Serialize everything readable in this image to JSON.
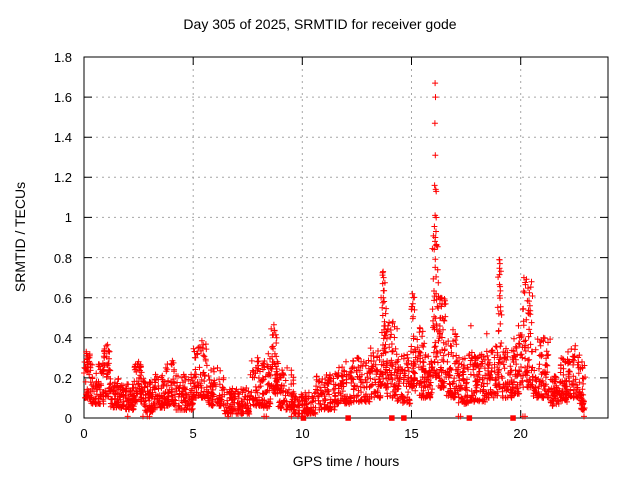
{
  "chart_data": {
    "type": "scatter",
    "title": "Day 305 of 2025, SRMTID for receiver gode",
    "xlabel": "GPS time / hours",
    "ylabel": "SRMTID / TECUs",
    "xlim": [
      0,
      24
    ],
    "ylim": [
      0,
      1.8
    ],
    "xticks": [
      0,
      5,
      10,
      15,
      20
    ],
    "yticks": [
      0,
      0.2,
      0.4,
      0.6,
      0.8,
      1,
      1.2,
      1.4,
      1.6,
      1.8
    ],
    "ytick_labels": [
      "0",
      "0.2",
      "0.4",
      "0.6",
      "0.8",
      "1",
      "1.2",
      "1.4",
      "1.6",
      "1.8"
    ],
    "grid": true,
    "legend": "none",
    "marker": "plus",
    "marker_color": "#ff0000",
    "grid_color": "#a6a6a6",
    "axis_color": "#000000",
    "series_name": "SRMTID",
    "density_bands": [
      [
        0.0,
        0.3,
        0.1,
        0.33,
        45
      ],
      [
        0.3,
        0.9,
        0.07,
        0.28,
        70
      ],
      [
        0.9,
        1.2,
        0.1,
        0.36,
        40
      ],
      [
        1.2,
        1.8,
        0.05,
        0.2,
        70
      ],
      [
        1.8,
        2.3,
        0.04,
        0.17,
        60
      ],
      [
        2.3,
        2.75,
        0.08,
        0.28,
        55
      ],
      [
        2.75,
        3.2,
        0.03,
        0.18,
        55
      ],
      [
        3.2,
        3.7,
        0.05,
        0.22,
        55
      ],
      [
        3.7,
        4.2,
        0.06,
        0.28,
        55
      ],
      [
        4.2,
        5.0,
        0.04,
        0.22,
        80
      ],
      [
        5.0,
        5.65,
        0.1,
        0.38,
        70
      ],
      [
        5.65,
        6.4,
        0.06,
        0.25,
        70
      ],
      [
        6.4,
        7.6,
        0.02,
        0.15,
        110
      ],
      [
        7.6,
        8.2,
        0.06,
        0.3,
        60
      ],
      [
        8.2,
        8.55,
        0.05,
        0.33,
        45
      ],
      [
        8.55,
        8.9,
        0.12,
        0.46,
        50
      ],
      [
        8.9,
        9.6,
        0.04,
        0.24,
        65
      ],
      [
        9.6,
        10.6,
        0.02,
        0.13,
        90
      ],
      [
        10.6,
        11.5,
        0.04,
        0.22,
        85
      ],
      [
        11.5,
        12.3,
        0.07,
        0.26,
        75
      ],
      [
        12.3,
        13.1,
        0.08,
        0.3,
        75
      ],
      [
        13.1,
        13.6,
        0.1,
        0.35,
        55
      ],
      [
        13.6,
        13.85,
        0.15,
        0.74,
        45
      ],
      [
        13.85,
        14.35,
        0.1,
        0.5,
        60
      ],
      [
        14.35,
        14.95,
        0.07,
        0.32,
        65
      ],
      [
        14.95,
        15.15,
        0.15,
        0.62,
        35
      ],
      [
        15.15,
        15.6,
        0.1,
        0.45,
        50
      ],
      [
        15.6,
        15.95,
        0.1,
        0.32,
        45
      ],
      [
        15.95,
        16.25,
        0.2,
        1.0,
        55
      ],
      [
        16.25,
        16.6,
        0.15,
        0.6,
        55
      ],
      [
        16.6,
        17.1,
        0.1,
        0.42,
        60
      ],
      [
        17.1,
        17.6,
        0.07,
        0.3,
        60
      ],
      [
        17.6,
        18.4,
        0.08,
        0.33,
        85
      ],
      [
        18.4,
        18.95,
        0.1,
        0.38,
        60
      ],
      [
        18.95,
        19.15,
        0.15,
        0.8,
        30
      ],
      [
        19.15,
        19.6,
        0.1,
        0.35,
        50
      ],
      [
        19.6,
        20.05,
        0.12,
        0.45,
        55
      ],
      [
        20.05,
        20.55,
        0.15,
        0.7,
        65
      ],
      [
        20.55,
        21.35,
        0.1,
        0.4,
        80
      ],
      [
        21.35,
        21.75,
        0.06,
        0.22,
        45
      ],
      [
        21.75,
        22.15,
        0.08,
        0.3,
        50
      ],
      [
        22.15,
        22.7,
        0.1,
        0.35,
        60
      ],
      [
        22.7,
        22.95,
        0.04,
        0.28,
        35
      ]
    ],
    "outlier_points": [
      [
        0.1,
        0.33
      ],
      [
        0.15,
        0.31
      ],
      [
        1.08,
        0.365
      ],
      [
        1.12,
        0.335
      ],
      [
        2.5,
        0.28
      ],
      [
        4.05,
        0.285
      ],
      [
        5.35,
        0.35
      ],
      [
        5.4,
        0.385
      ],
      [
        5.46,
        0.365
      ],
      [
        7.95,
        0.3
      ],
      [
        8.67,
        0.415
      ],
      [
        8.7,
        0.465
      ],
      [
        8.73,
        0.435
      ],
      [
        9.3,
        0.25
      ],
      [
        12.0,
        0.28
      ],
      [
        12.55,
        0.3
      ],
      [
        13.66,
        0.55
      ],
      [
        13.68,
        0.67
      ],
      [
        13.69,
        0.575
      ],
      [
        13.7,
        0.73
      ],
      [
        13.71,
        0.6
      ],
      [
        13.72,
        0.7
      ],
      [
        13.74,
        0.635
      ],
      [
        14.15,
        0.48
      ],
      [
        14.22,
        0.455
      ],
      [
        15.03,
        0.555
      ],
      [
        15.04,
        0.62
      ],
      [
        15.06,
        0.57
      ],
      [
        15.38,
        0.45
      ],
      [
        16.04,
        0.84
      ],
      [
        16.05,
        0.955
      ],
      [
        16.06,
        1.16
      ],
      [
        16.07,
        1.47
      ],
      [
        16.08,
        1.67
      ],
      [
        16.08,
        1.01
      ],
      [
        16.09,
        1.31
      ],
      [
        16.09,
        0.9
      ],
      [
        16.1,
        1.6
      ],
      [
        16.11,
        1.14
      ],
      [
        16.12,
        0.93
      ],
      [
        16.13,
        1.13
      ],
      [
        16.14,
        0.865
      ],
      [
        16.3,
        0.57
      ],
      [
        16.35,
        0.6
      ],
      [
        16.9,
        0.44
      ],
      [
        17.0,
        0.42
      ],
      [
        17.72,
        0.46
      ],
      [
        18.45,
        0.42
      ],
      [
        19.0,
        0.52
      ],
      [
        19.02,
        0.79
      ],
      [
        19.03,
        0.715
      ],
      [
        19.04,
        0.61
      ],
      [
        19.05,
        0.77
      ],
      [
        19.06,
        0.655
      ],
      [
        19.08,
        0.555
      ],
      [
        19.9,
        0.46
      ],
      [
        20.12,
        0.545
      ],
      [
        20.15,
        0.7
      ],
      [
        20.18,
        0.625
      ],
      [
        20.22,
        0.665
      ],
      [
        20.31,
        0.585
      ],
      [
        20.38,
        0.52
      ],
      [
        21.05,
        0.4
      ],
      [
        22.5,
        0.36
      ]
    ],
    "near_zero_points_x": [
      2.0,
      2.7,
      2.9,
      3.0,
      6.6,
      8.25,
      8.35,
      9.5,
      9.8,
      17.15,
      17.25,
      20.1,
      20.2,
      22.9
    ],
    "baseline_square_markers_x": [
      10.05,
      12.1,
      14.1,
      14.65,
      17.65,
      19.65
    ]
  }
}
